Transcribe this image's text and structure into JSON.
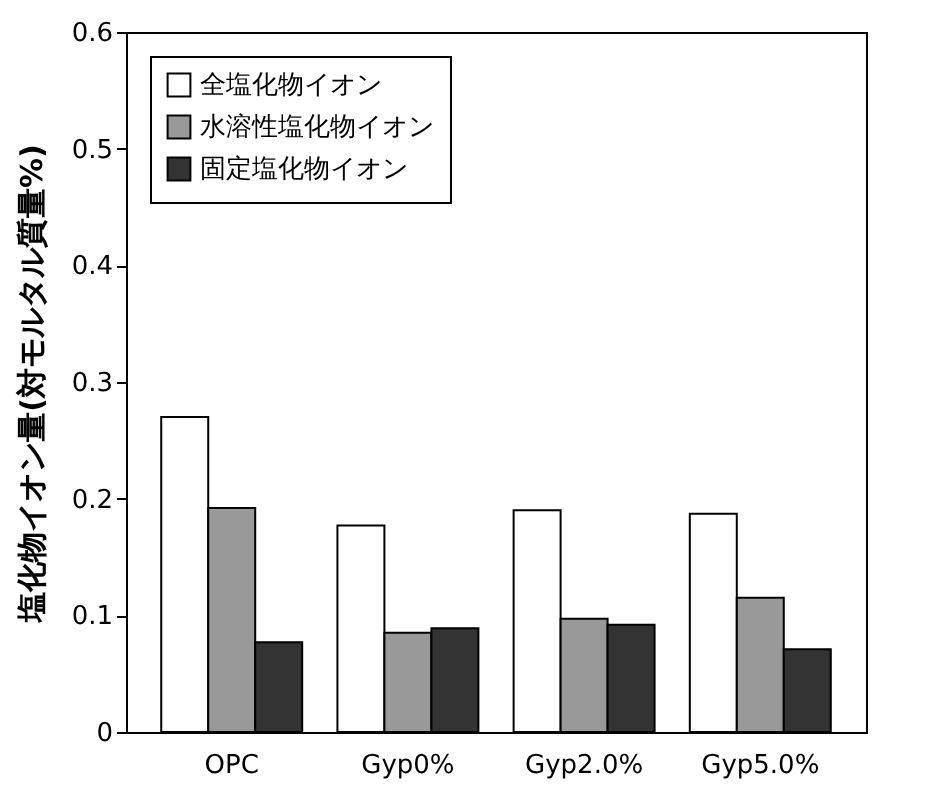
{
  "chart_data": {
    "type": "bar",
    "ylabel": "塩化物イオン量(対モルタル質量%)",
    "categories": [
      "OPC",
      "Gyp0%",
      "Gyp2.0%",
      "Gyp5.0%"
    ],
    "series": [
      {
        "name": "全塩化物イオン",
        "color": "#ffffff",
        "values": [
          0.27,
          0.177,
          0.19,
          0.187
        ]
      },
      {
        "name": "水溶性塩化物イオン",
        "color": "#999999",
        "values": [
          0.192,
          0.085,
          0.097,
          0.115
        ]
      },
      {
        "name": "固定塩化物イオン",
        "color": "#333333",
        "values": [
          0.077,
          0.089,
          0.092,
          0.071
        ]
      }
    ],
    "ylim": [
      0,
      0.6
    ],
    "yticks": [
      0,
      0.1,
      0.2,
      0.3,
      0.4,
      0.5,
      0.6
    ],
    "grid": false,
    "legend": "top left"
  }
}
